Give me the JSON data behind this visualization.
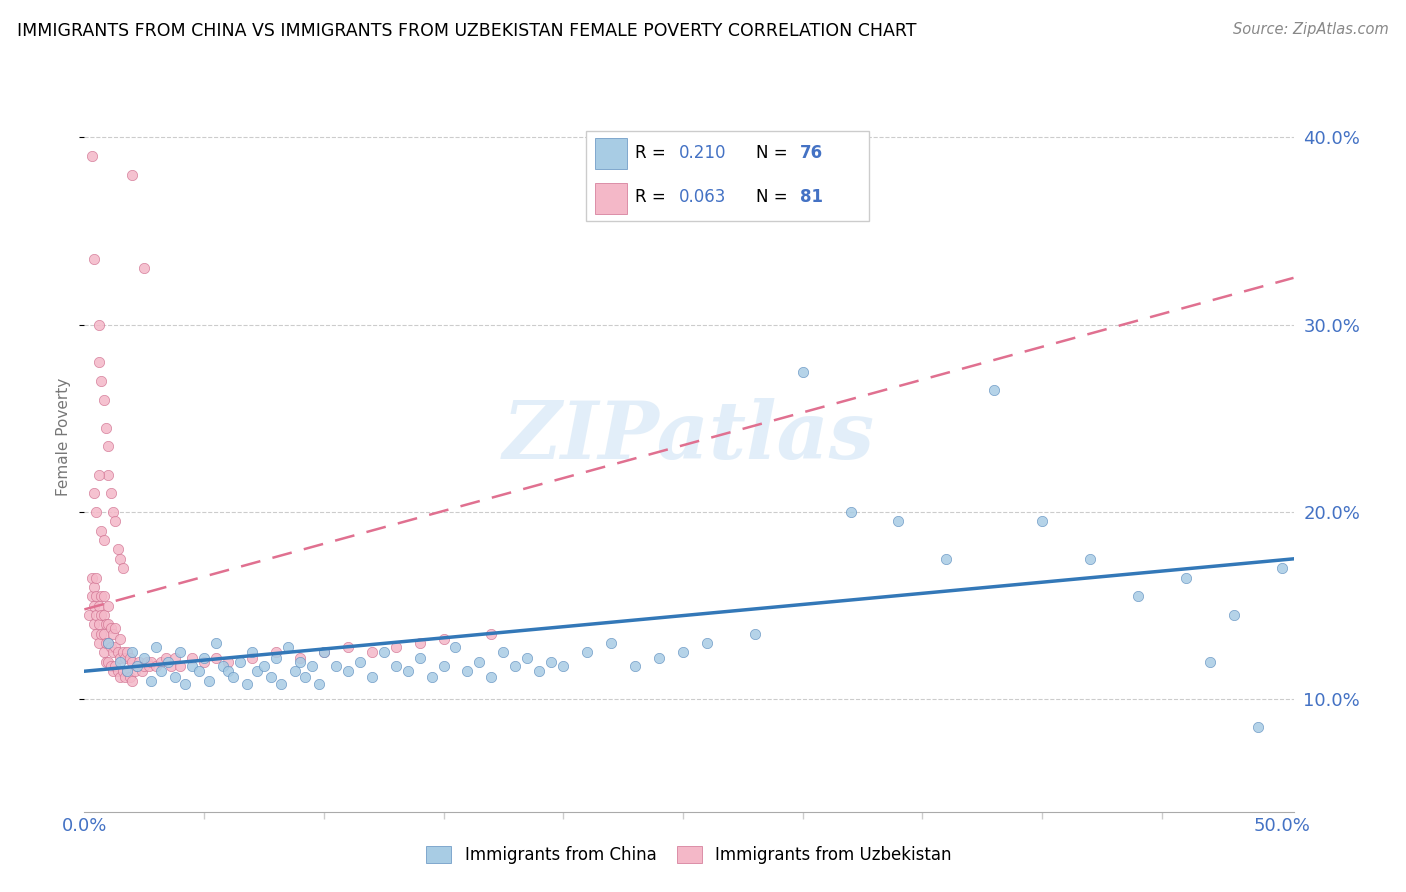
{
  "title": "IMMIGRANTS FROM CHINA VS IMMIGRANTS FROM UZBEKISTAN FEMALE POVERTY CORRELATION CHART",
  "source": "Source: ZipAtlas.com",
  "ylabel": "Female Poverty",
  "color_china": "#a8cce4",
  "color_uzbekistan": "#f4b8c8",
  "trendline_china_color": "#3378b8",
  "trendline_uzbekistan_color": "#e07090",
  "watermark": "ZIPatlas",
  "xlim": [
    0.0,
    0.505
  ],
  "ylim": [
    0.04,
    0.44
  ],
  "yticks": [
    0.1,
    0.2,
    0.3,
    0.4
  ],
  "ytick_labels": [
    "10.0%",
    "20.0%",
    "30.0%",
    "40.0%"
  ],
  "china_x": [
    0.01,
    0.015,
    0.018,
    0.02,
    0.022,
    0.025,
    0.028,
    0.03,
    0.032,
    0.035,
    0.038,
    0.04,
    0.042,
    0.045,
    0.048,
    0.05,
    0.052,
    0.055,
    0.058,
    0.06,
    0.062,
    0.065,
    0.068,
    0.07,
    0.072,
    0.075,
    0.078,
    0.08,
    0.082,
    0.085,
    0.088,
    0.09,
    0.092,
    0.095,
    0.098,
    0.1,
    0.105,
    0.11,
    0.115,
    0.12,
    0.125,
    0.13,
    0.135,
    0.14,
    0.145,
    0.15,
    0.155,
    0.16,
    0.165,
    0.17,
    0.175,
    0.18,
    0.185,
    0.19,
    0.195,
    0.2,
    0.21,
    0.22,
    0.23,
    0.24,
    0.25,
    0.26,
    0.28,
    0.3,
    0.32,
    0.34,
    0.36,
    0.38,
    0.4,
    0.42,
    0.44,
    0.46,
    0.47,
    0.48,
    0.49,
    0.5
  ],
  "china_y": [
    0.13,
    0.12,
    0.115,
    0.125,
    0.118,
    0.122,
    0.11,
    0.128,
    0.115,
    0.12,
    0.112,
    0.125,
    0.108,
    0.118,
    0.115,
    0.122,
    0.11,
    0.13,
    0.118,
    0.115,
    0.112,
    0.12,
    0.108,
    0.125,
    0.115,
    0.118,
    0.112,
    0.122,
    0.108,
    0.128,
    0.115,
    0.12,
    0.112,
    0.118,
    0.108,
    0.125,
    0.118,
    0.115,
    0.12,
    0.112,
    0.125,
    0.118,
    0.115,
    0.122,
    0.112,
    0.118,
    0.128,
    0.115,
    0.12,
    0.112,
    0.125,
    0.118,
    0.122,
    0.115,
    0.12,
    0.118,
    0.125,
    0.13,
    0.118,
    0.122,
    0.125,
    0.13,
    0.135,
    0.275,
    0.2,
    0.195,
    0.175,
    0.265,
    0.195,
    0.175,
    0.155,
    0.165,
    0.12,
    0.145,
    0.085,
    0.17
  ],
  "uzbekistan_x": [
    0.002,
    0.003,
    0.003,
    0.004,
    0.004,
    0.004,
    0.005,
    0.005,
    0.005,
    0.005,
    0.006,
    0.006,
    0.006,
    0.007,
    0.007,
    0.007,
    0.008,
    0.008,
    0.008,
    0.008,
    0.009,
    0.009,
    0.009,
    0.01,
    0.01,
    0.01,
    0.01,
    0.011,
    0.011,
    0.011,
    0.012,
    0.012,
    0.012,
    0.013,
    0.013,
    0.013,
    0.014,
    0.014,
    0.015,
    0.015,
    0.015,
    0.016,
    0.016,
    0.017,
    0.017,
    0.018,
    0.018,
    0.019,
    0.019,
    0.02,
    0.02,
    0.021,
    0.022,
    0.023,
    0.024,
    0.025,
    0.026,
    0.027,
    0.028,
    0.03,
    0.032,
    0.034,
    0.036,
    0.038,
    0.04,
    0.045,
    0.05,
    0.055,
    0.06,
    0.07,
    0.08,
    0.09,
    0.1,
    0.11,
    0.12,
    0.13,
    0.14,
    0.15,
    0.17,
    0.02,
    0.025
  ],
  "uzbekistan_y": [
    0.145,
    0.155,
    0.165,
    0.14,
    0.15,
    0.16,
    0.135,
    0.145,
    0.155,
    0.165,
    0.13,
    0.14,
    0.15,
    0.135,
    0.145,
    0.155,
    0.125,
    0.135,
    0.145,
    0.155,
    0.12,
    0.13,
    0.14,
    0.12,
    0.13,
    0.14,
    0.15,
    0.118,
    0.128,
    0.138,
    0.115,
    0.125,
    0.135,
    0.118,
    0.128,
    0.138,
    0.115,
    0.125,
    0.112,
    0.122,
    0.132,
    0.115,
    0.125,
    0.112,
    0.122,
    0.115,
    0.125,
    0.112,
    0.122,
    0.11,
    0.12,
    0.115,
    0.118,
    0.12,
    0.115,
    0.118,
    0.12,
    0.118,
    0.12,
    0.118,
    0.12,
    0.122,
    0.118,
    0.122,
    0.118,
    0.122,
    0.12,
    0.122,
    0.12,
    0.122,
    0.125,
    0.122,
    0.125,
    0.128,
    0.125,
    0.128,
    0.13,
    0.132,
    0.135,
    0.38,
    0.33
  ],
  "uzbek_outliers_x": [
    0.003,
    0.004,
    0.006,
    0.006,
    0.007,
    0.008,
    0.009,
    0.01,
    0.01,
    0.011,
    0.012,
    0.013,
    0.004,
    0.005,
    0.006,
    0.007,
    0.008,
    0.014,
    0.015,
    0.016
  ],
  "uzbek_outliers_y": [
    0.39,
    0.335,
    0.3,
    0.28,
    0.27,
    0.26,
    0.245,
    0.235,
    0.22,
    0.21,
    0.2,
    0.195,
    0.21,
    0.2,
    0.22,
    0.19,
    0.185,
    0.18,
    0.175,
    0.17
  ],
  "china_trend_x0": 0.0,
  "china_trend_y0": 0.115,
  "china_trend_x1": 0.505,
  "china_trend_y1": 0.175,
  "uzbek_trend_x0": 0.0,
  "uzbek_trend_y0": 0.148,
  "uzbek_trend_x1": 0.505,
  "uzbek_trend_y1": 0.325
}
